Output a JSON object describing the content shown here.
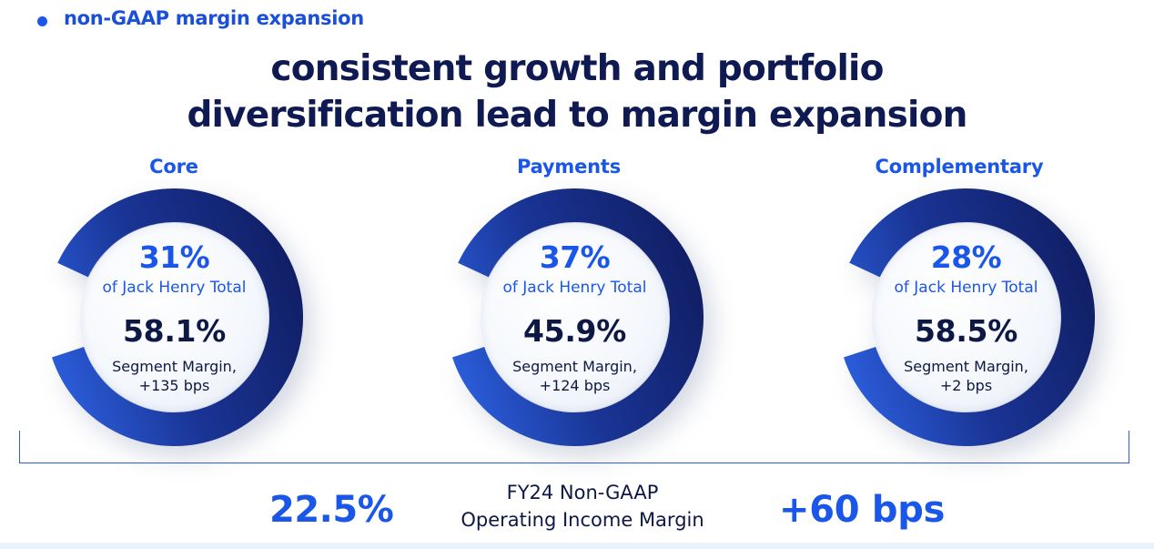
{
  "header": {
    "section_label": "non-GAAP margin expansion",
    "headline_line1": "consistent growth and portfolio",
    "headline_line2": "diversification lead to margin expansion"
  },
  "segments": [
    {
      "name": "Core",
      "share_pct": "31%",
      "share_label": "of Jack Henry Total",
      "margin_pct": "58.1%",
      "margin_label": "Segment Margin,",
      "margin_change": "+135 bps"
    },
    {
      "name": "Payments",
      "share_pct": "37%",
      "share_label": "of Jack Henry Total",
      "margin_pct": "45.9%",
      "margin_label": "Segment Margin,",
      "margin_change": "+124 bps"
    },
    {
      "name": "Complementary",
      "share_pct": "28%",
      "share_label": "of Jack Henry Total",
      "margin_pct": "58.5%",
      "margin_label": "Segment Margin,",
      "margin_change": "+2 bps"
    }
  ],
  "summary": {
    "value": "22.5%",
    "label_line1": "FY24 Non-GAAP",
    "label_line2": "Operating Income Margin",
    "change": "+60 bps"
  },
  "colors": {
    "accent": "#1a56e8",
    "navy": "#0e1844",
    "ring_dark": "#131f66",
    "ring_light": "#2d62e6"
  }
}
